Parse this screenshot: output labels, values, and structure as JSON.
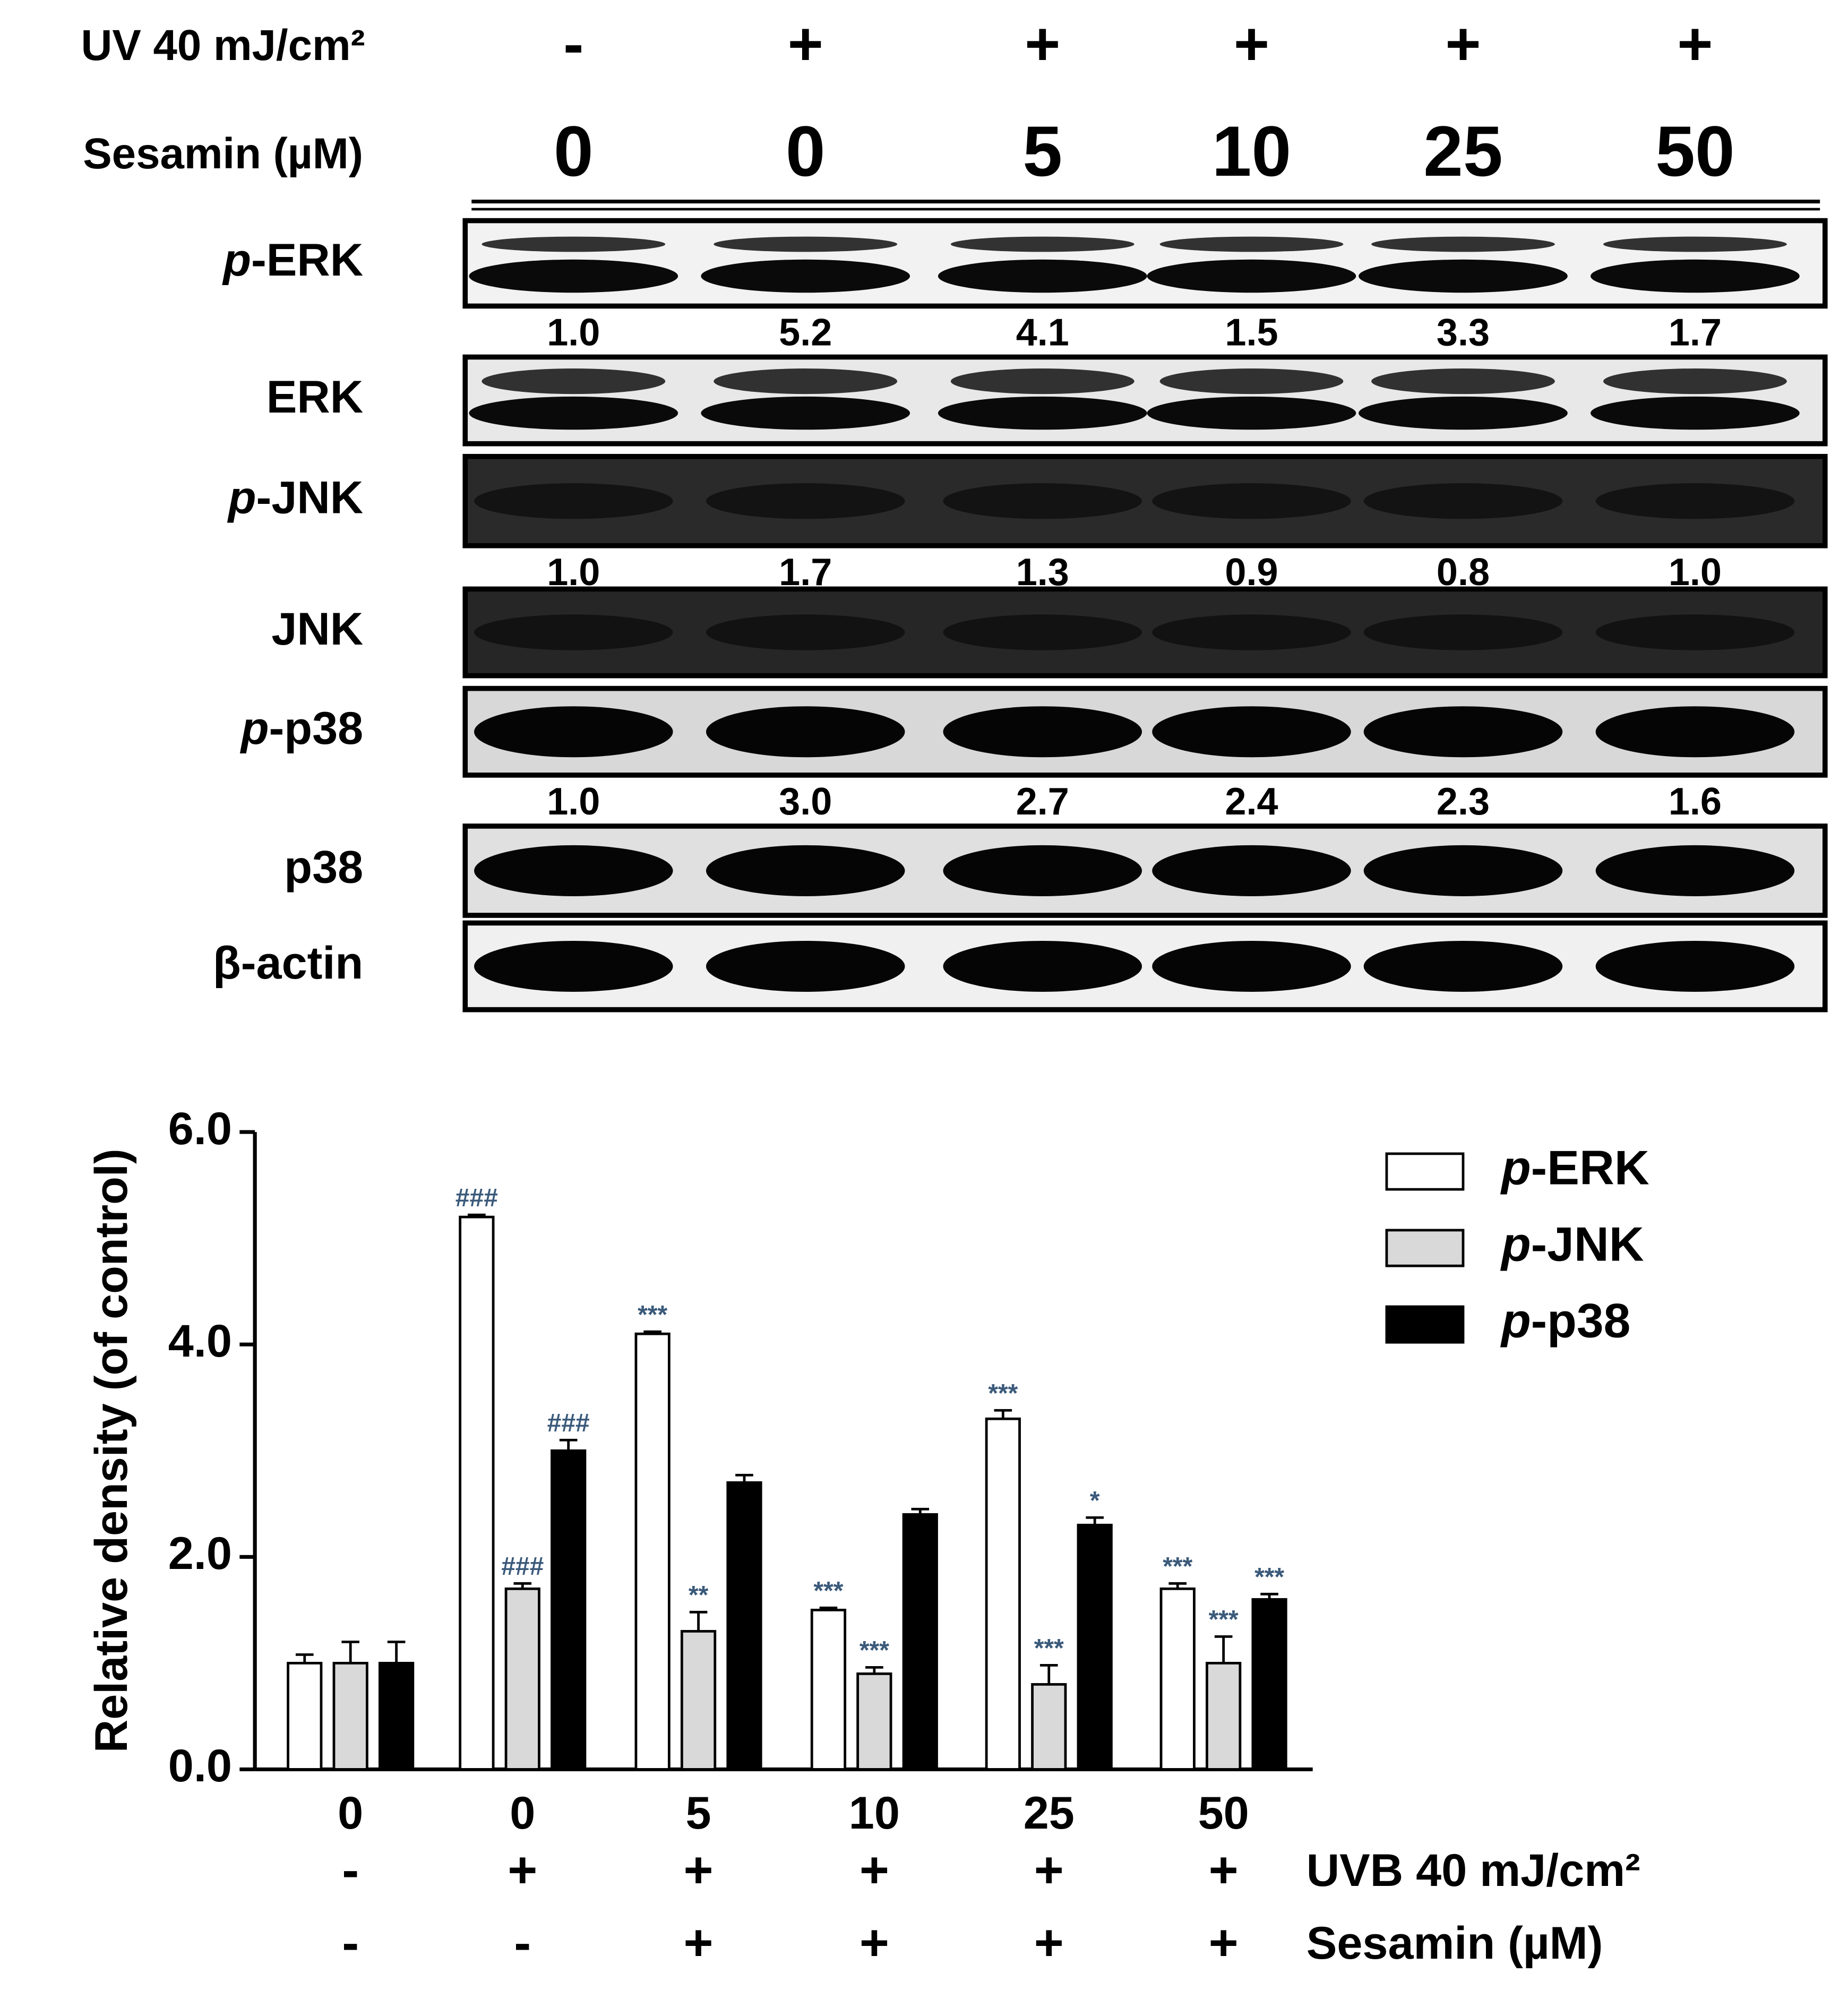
{
  "blot": {
    "conditions": [
      {
        "label": "UV 40 mJ/cm²",
        "values": [
          "-",
          "+",
          "+",
          "+",
          "+",
          "+"
        ]
      },
      {
        "label": "Sesamin (µM)",
        "values": [
          "0",
          "0",
          "5",
          "10",
          "25",
          "50"
        ]
      }
    ],
    "panels": [
      {
        "label": "p-ERK",
        "quantification": [
          "1.0",
          "5.2",
          "4.1",
          "1.5",
          "3.3",
          "1.7"
        ]
      },
      {
        "label": "ERK"
      },
      {
        "label": "p-JNK",
        "quantification": [
          "1.0",
          "1.7",
          "1.3",
          "0.9",
          "0.8",
          "1.0"
        ]
      },
      {
        "label": "JNK"
      },
      {
        "label": "p-p38",
        "quantification": [
          "1.0",
          "3.0",
          "2.7",
          "2.4",
          "2.3",
          "1.6"
        ]
      },
      {
        "label": "p38"
      },
      {
        "label": "β-actin"
      }
    ]
  },
  "chart_data": {
    "type": "bar",
    "y_label": "Relative density (of control)",
    "categories": [
      "0",
      "0",
      "5",
      "10",
      "25",
      "50"
    ],
    "x_rows": [
      {
        "label": "UVB 40 mJ/cm²",
        "values": [
          "-",
          "+",
          "+",
          "+",
          "+",
          "+"
        ]
      },
      {
        "label": "Sesamin (µM)",
        "values": [
          "-",
          "-",
          "+",
          "+",
          "+",
          "+"
        ]
      }
    ],
    "series": [
      {
        "name": "p-ERK",
        "color": "#ffffff",
        "values": [
          1.0,
          5.2,
          4.1,
          1.5,
          3.3,
          1.7
        ],
        "errors": [
          0.08,
          0.02,
          0.02,
          0.02,
          0.08,
          0.05
        ],
        "annotations": [
          null,
          "###",
          "***",
          "***",
          "***",
          "***"
        ]
      },
      {
        "name": "p-JNK",
        "color": "#d9d9d9",
        "values": [
          1.0,
          1.7,
          1.3,
          0.9,
          0.8,
          1.0
        ],
        "errors": [
          0.2,
          0.05,
          0.18,
          0.06,
          0.18,
          0.25
        ],
        "annotations": [
          null,
          "###",
          "**",
          "***",
          "***",
          "***"
        ]
      },
      {
        "name": "p-p38",
        "color": "#000000",
        "values": [
          1.0,
          3.0,
          2.7,
          2.4,
          2.3,
          1.6
        ],
        "errors": [
          0.2,
          0.1,
          0.07,
          0.05,
          0.07,
          0.05
        ],
        "annotations": [
          null,
          "###",
          null,
          null,
          "*",
          "***"
        ]
      }
    ],
    "ylim": [
      0,
      6
    ],
    "yticks": [
      {
        "value": 0,
        "label": "0.0"
      },
      {
        "value": 2,
        "label": "2.0"
      },
      {
        "value": 4,
        "label": "4.0"
      },
      {
        "value": 6,
        "label": "6.0"
      }
    ],
    "legend": "upper right"
  }
}
